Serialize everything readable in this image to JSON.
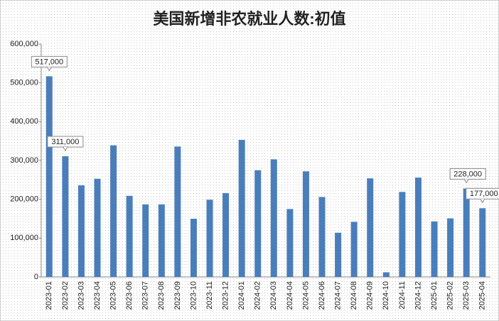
{
  "chart_data": {
    "type": "bar",
    "title": "美国新增非农就业人数:初值",
    "categories": [
      "2023-01",
      "2023-02",
      "2023-03",
      "2023-04",
      "2023-05",
      "2023-06",
      "2023-07",
      "2023-08",
      "2023-09",
      "2023-10",
      "2023-11",
      "2023-12",
      "2024-01",
      "2024-02",
      "2024-03",
      "2024-04",
      "2024-05",
      "2024-06",
      "2024-07",
      "2024-08",
      "2024-09",
      "2024-10",
      "2024-11",
      "2024-12",
      "2025-01",
      "2025-02",
      "2025-03",
      "2025-04"
    ],
    "values": [
      517000,
      311000,
      236000,
      253000,
      339000,
      209000,
      187000,
      187000,
      336000,
      150000,
      199000,
      216000,
      353000,
      275000,
      303000,
      175000,
      272000,
      206000,
      114000,
      142000,
      254000,
      12000,
      219000,
      256000,
      143000,
      151000,
      228000,
      177000
    ],
    "value_labels": [
      "517,000",
      "311,000",
      null,
      null,
      null,
      null,
      null,
      null,
      null,
      null,
      null,
      null,
      null,
      null,
      null,
      null,
      null,
      null,
      null,
      null,
      null,
      null,
      null,
      null,
      null,
      null,
      "228,000",
      "177,000"
    ],
    "color": "#4a7ebb",
    "ylim": [
      0,
      600000
    ],
    "yticks": [
      0,
      {
        "value": 100000,
        "label": "100,000"
      },
      {
        "value": 200000,
        "label": "200,000"
      },
      {
        "value": 300000,
        "label": "300,000"
      },
      {
        "value": 400000,
        "label": "400,000"
      },
      {
        "value": 500000,
        "label": "500,000"
      },
      {
        "value": 600000,
        "label": "600,000"
      }
    ],
    "grid": false
  }
}
